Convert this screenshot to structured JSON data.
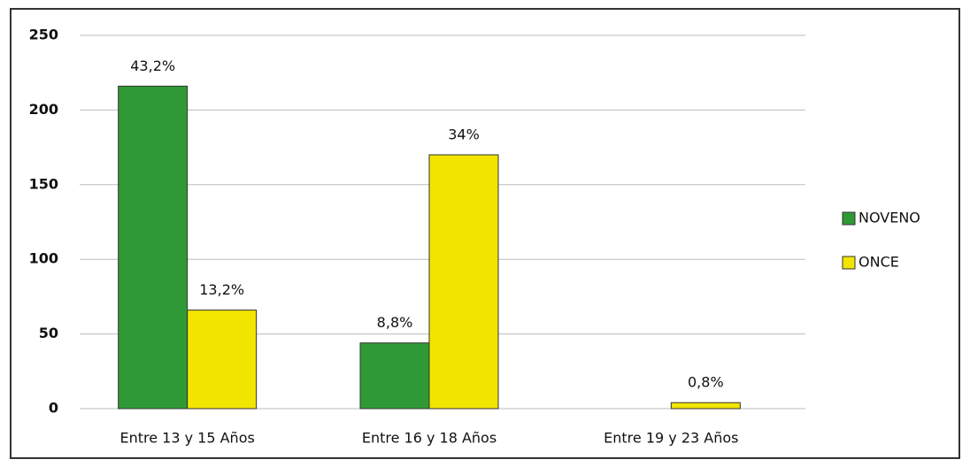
{
  "chart_data": {
    "type": "bar",
    "categories": [
      "Entre 13 y 15 Años",
      "Entre 16 y 18 Años",
      "Entre 19 y 23 Años"
    ],
    "series": [
      {
        "name": "NOVENO",
        "color": "#2f9a35",
        "values": [
          216,
          44,
          null
        ],
        "value_labels": [
          "43,2%",
          "8,8%",
          null
        ]
      },
      {
        "name": "ONCE",
        "color": "#f2e500",
        "values": [
          66,
          170,
          4
        ],
        "value_labels": [
          "13,2%",
          "34%",
          "0,8%"
        ]
      }
    ],
    "ylim": [
      0,
      250
    ],
    "yticks": [
      0,
      50,
      100,
      150,
      200,
      250
    ],
    "grid": true,
    "legend": "right"
  }
}
